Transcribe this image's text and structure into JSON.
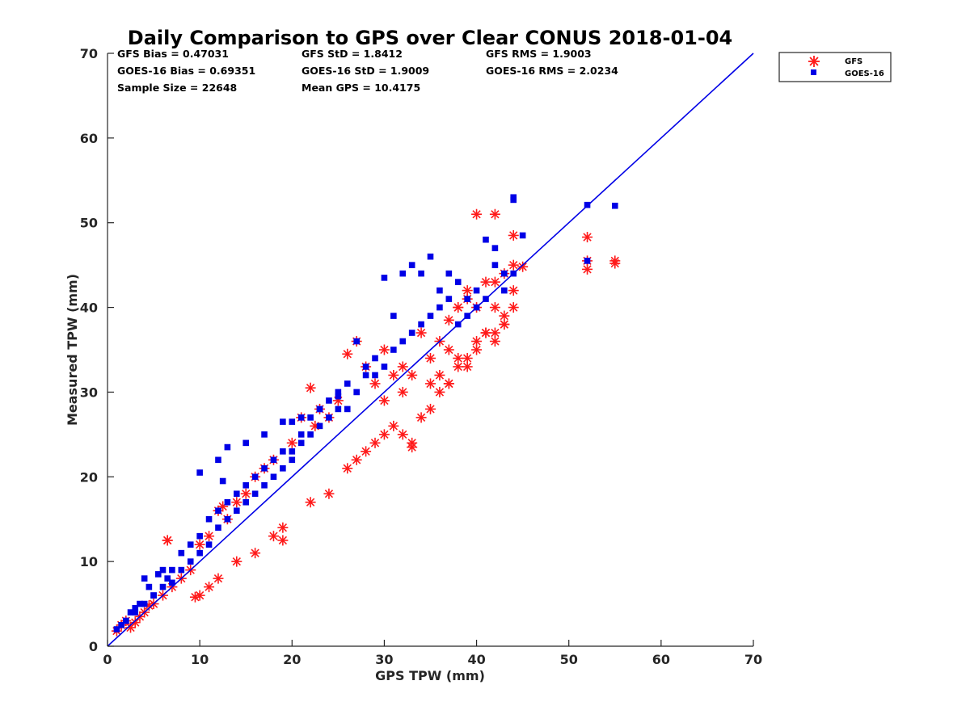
{
  "chart_data": {
    "type": "scatter",
    "title": "Daily Comparison to GPS over Clear CONUS 2018-01-04",
    "xlabel": "GPS TPW (mm)",
    "ylabel": "Measured TPW (mm)",
    "xlim": [
      0,
      70
    ],
    "ylim": [
      0,
      70
    ],
    "xticks": [
      0,
      10,
      20,
      30,
      40,
      50,
      60,
      70
    ],
    "yticks": [
      0,
      10,
      20,
      30,
      40,
      50,
      60,
      70
    ],
    "legend_position": "outside-top-right",
    "stats": [
      [
        "GFS Bias = 0.47031",
        "GFS StD = 1.8412",
        "GFS RMS = 1.9003"
      ],
      [
        "GOES-16 Bias = 0.69351",
        "GOES-16 StD = 1.9009",
        "GOES-16 RMS = 2.0234"
      ],
      [
        "Sample Size = 22648",
        "Mean GPS = 10.4175"
      ]
    ],
    "reference_line": {
      "name": "1:1 line",
      "x": [
        0,
        70
      ],
      "y": [
        0,
        70
      ],
      "color": "#0000e6"
    },
    "series": [
      {
        "name": "GFS",
        "marker": "asterisk",
        "color": "#ff1a1a",
        "x": [
          1,
          1.5,
          2,
          2.5,
          3,
          3.5,
          4,
          4.5,
          5,
          6,
          6.5,
          7,
          8,
          9,
          9.5,
          10,
          11,
          12,
          12.5,
          13,
          14,
          15,
          16,
          17,
          18,
          19,
          20,
          21,
          22,
          22.5,
          23,
          24,
          25,
          26,
          27,
          28,
          29,
          30,
          31,
          32,
          33,
          34,
          35,
          36,
          37,
          38,
          39,
          40,
          41,
          42,
          43,
          44,
          45,
          6.5,
          10,
          11,
          12,
          14,
          16,
          18,
          19,
          22,
          24,
          26,
          27,
          28,
          29,
          30,
          31,
          32,
          33,
          34,
          35,
          36,
          37,
          38,
          39,
          40,
          41,
          42,
          43,
          44,
          40,
          42,
          44,
          52,
          52,
          52,
          55,
          55,
          42,
          43,
          37,
          38,
          39,
          30,
          32,
          33,
          35,
          36,
          37,
          38,
          39,
          40,
          41,
          42,
          43,
          44
        ],
        "y": [
          1.8,
          2.5,
          3,
          2.2,
          2.8,
          3.5,
          4,
          4.8,
          5,
          6,
          12.5,
          7,
          8,
          9,
          5.8,
          12,
          13,
          16,
          16.5,
          15,
          17,
          18,
          20,
          21,
          22,
          12.5,
          24,
          27,
          30.5,
          26,
          28,
          27,
          29,
          34.5,
          36,
          33,
          31,
          35,
          32,
          33,
          24,
          37,
          31,
          32,
          31,
          40,
          41,
          36,
          43,
          40,
          44,
          45,
          44.8,
          12.5,
          6,
          7,
          8,
          10,
          11,
          13,
          14,
          17,
          18,
          21,
          22,
          23,
          24,
          25,
          26,
          25,
          23.5,
          27,
          28,
          30,
          31,
          33,
          34,
          40,
          37,
          43,
          39,
          42,
          51,
          51,
          48.5,
          45.5,
          44.5,
          48.3,
          45.5,
          45.2,
          37,
          38,
          38.5,
          40,
          42,
          29,
          30,
          32,
          34,
          36,
          35,
          34,
          33,
          35,
          37,
          36,
          38,
          40
        ],
        "note": "approximate representative sample read from a dense scatter cloud"
      },
      {
        "name": "GOES-16",
        "marker": "square",
        "color": "#0000e6",
        "x": [
          1,
          1.5,
          2,
          2.5,
          3,
          3.5,
          4,
          4.5,
          5,
          5.5,
          6,
          6.5,
          7,
          8,
          9,
          10,
          11,
          12,
          13,
          14,
          15,
          16,
          17,
          18,
          19,
          20,
          21,
          22,
          23,
          24,
          25,
          26,
          27,
          28,
          29,
          30,
          31,
          32,
          33,
          34,
          35,
          36,
          37,
          38,
          39,
          40,
          41,
          42,
          43,
          44,
          45,
          2,
          3,
          4,
          5,
          6,
          7,
          8,
          9,
          10,
          11,
          12,
          13,
          14,
          15,
          16,
          17,
          18,
          19,
          20,
          21,
          22,
          23,
          24,
          25,
          26,
          27,
          28,
          29,
          30,
          31,
          32,
          33,
          34,
          35,
          36,
          37,
          38,
          39,
          40,
          41,
          42,
          43,
          44,
          44,
          52,
          52,
          55,
          10,
          12,
          12.5,
          13,
          15,
          17,
          19,
          20,
          21,
          23,
          25
        ],
        "y": [
          2,
          2.5,
          3,
          4,
          4.5,
          5,
          8,
          7,
          6,
          8.5,
          9,
          8,
          9,
          11,
          12,
          13,
          15,
          16,
          17,
          18,
          19,
          20,
          21,
          22,
          23,
          23,
          25,
          27,
          28,
          29,
          30,
          31,
          36,
          33,
          32,
          43.5,
          39,
          44,
          45,
          44,
          46,
          42,
          44,
          43,
          41,
          42,
          48,
          47,
          44,
          53,
          48.5,
          3,
          4,
          5,
          6,
          7,
          7.5,
          9,
          10,
          11,
          12,
          14,
          15,
          16,
          17,
          18,
          19,
          20,
          21,
          22,
          24,
          25,
          26,
          27,
          28,
          28,
          30,
          32,
          34,
          33,
          35,
          36,
          37,
          38,
          39,
          40,
          41,
          38,
          39,
          40,
          41,
          45,
          42,
          44,
          52.7,
          52.1,
          45.5,
          52,
          20.5,
          22,
          19.5,
          23.5,
          24,
          25,
          26.5,
          26.5,
          27,
          28,
          29.5
        ],
        "note": "approximate representative sample read from a dense scatter cloud"
      }
    ]
  }
}
